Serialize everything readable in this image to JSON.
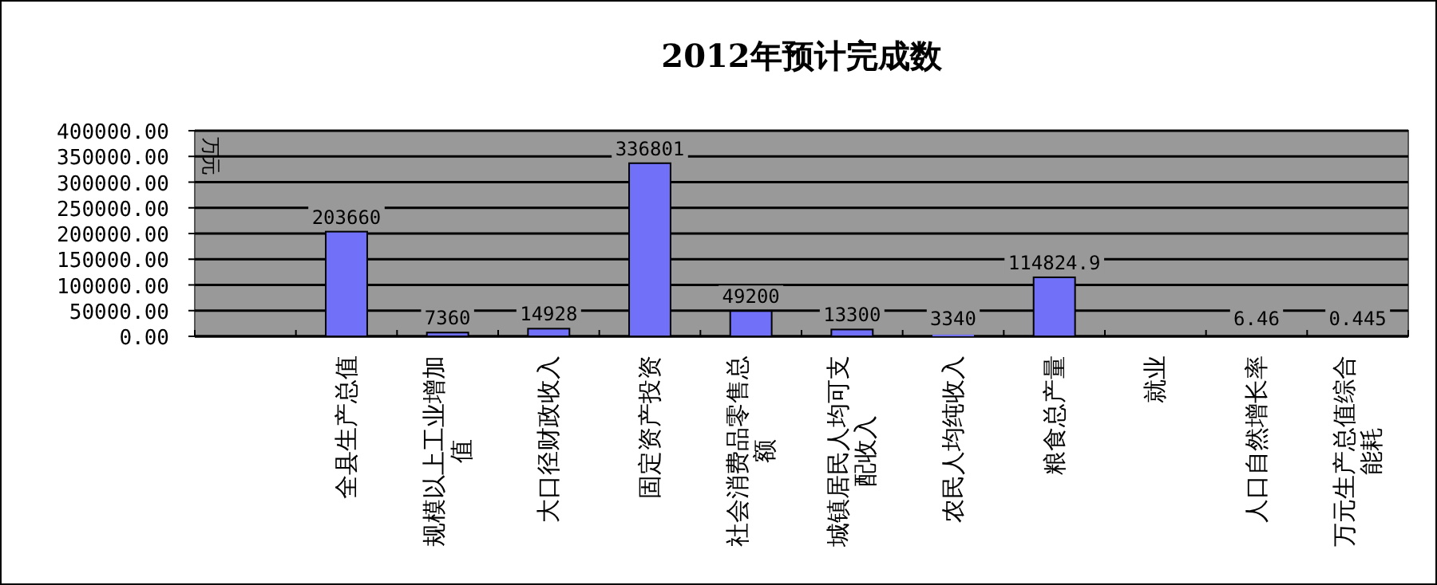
{
  "chart_data": {
    "type": "bar",
    "title": "2012年预计完成数",
    "ylabel": "万元",
    "categories": [
      null,
      "全县生产总值",
      "规模以上工业增加值",
      "大口径财政收入",
      "固定资产投资",
      "社会消费品零售总额",
      "城镇居民人均可支配收入",
      "农民人均纯收入",
      "粮食总产量",
      "就业",
      "人口自然增长率",
      "万元生产总值综合能耗"
    ],
    "values": [
      null,
      203660,
      7360,
      14928,
      336801,
      49200,
      13300,
      3340,
      114824.9,
      null,
      6.46,
      0.445
    ],
    "color": "#7070f8",
    "ylim": [
      0,
      400000
    ],
    "yticks": [
      {
        "value": 0,
        "label": "0.00"
      },
      {
        "value": 50000,
        "label": "50000.00"
      },
      {
        "value": 100000,
        "label": "100000.00"
      },
      {
        "value": 150000,
        "label": "150000.00"
      },
      {
        "value": 200000,
        "label": "200000.00"
      },
      {
        "value": 250000,
        "label": "250000.00"
      },
      {
        "value": 300000,
        "label": "300000.00"
      },
      {
        "value": 350000,
        "label": "350000.00"
      },
      {
        "value": 400000,
        "label": "400000.00"
      }
    ],
    "grid": "y",
    "data_labels": true
  }
}
